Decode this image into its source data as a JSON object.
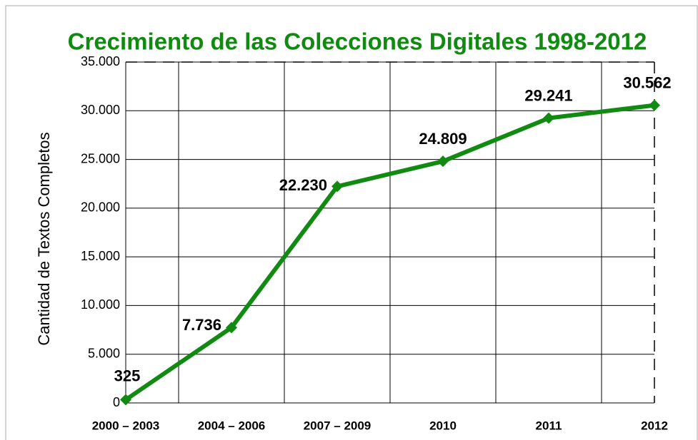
{
  "chart_data": {
    "type": "line",
    "title": "Crecimiento de las Colecciones Digitales 1998-2012",
    "y_label": "Cantidad de Textos Completos",
    "categories": [
      "2000 – 2003",
      "2004 – 2006",
      "2007 – 2009",
      "2010",
      "2011",
      "2012"
    ],
    "series": [
      {
        "name": "Textos Completos",
        "color": "#108a10",
        "values": [
          325,
          7736,
          22230,
          24809,
          29241,
          30562
        ],
        "value_labels": [
          "325",
          "7.736",
          "22.230",
          "24.809",
          "29.241",
          "30.562"
        ]
      }
    ],
    "ylim": [
      0,
      35000
    ],
    "yticks": [
      0,
      {
        "value": 5000,
        "label": "5.000"
      },
      {
        "value": 10000,
        "label": "10.000"
      },
      {
        "value": 15000,
        "label": "15.000"
      },
      {
        "value": 20000,
        "label": "20.000"
      },
      {
        "value": 25000,
        "label": "25.000"
      },
      {
        "value": 30000,
        "label": "30.000"
      },
      {
        "value": 35000,
        "label": "35.000"
      }
    ],
    "grid": true
  }
}
